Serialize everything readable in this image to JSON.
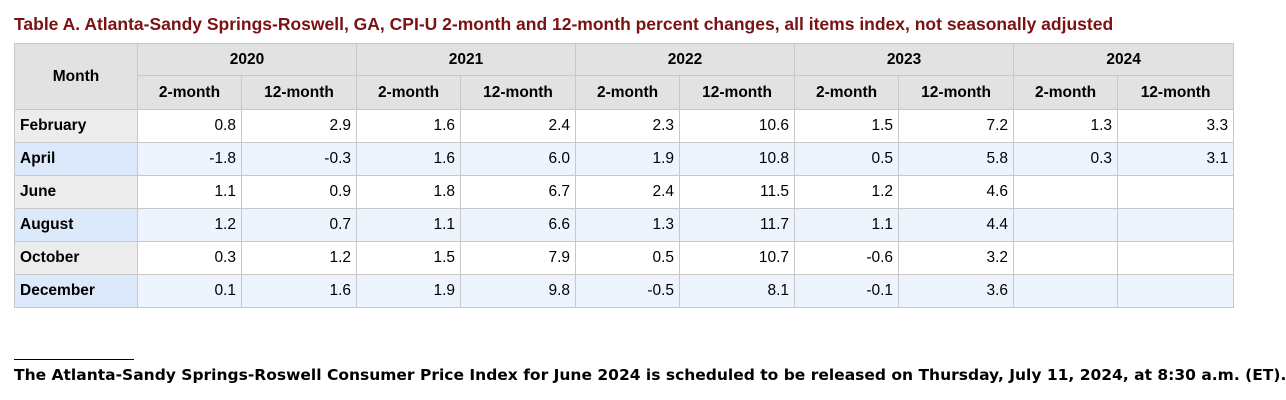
{
  "title": "Table A. Atlanta-Sandy Springs-Roswell, GA, CPI-U 2-month and 12-month percent changes, all items index, not seasonally adjusted",
  "table": {
    "month_header": "Month",
    "years": [
      "2020",
      "2021",
      "2022",
      "2023",
      "2024"
    ],
    "sub_headers": [
      "2-month",
      "12-month",
      "2-month",
      "12-month",
      "2-month",
      "12-month",
      "2-month",
      "12-month",
      "2-month",
      "12-month"
    ],
    "rows": [
      {
        "month": "February",
        "values": [
          "0.8",
          "2.9",
          "1.6",
          "2.4",
          "2.3",
          "10.6",
          "1.5",
          "7.2",
          "1.3",
          "3.3"
        ]
      },
      {
        "month": "April",
        "values": [
          "-1.8",
          "-0.3",
          "1.6",
          "6.0",
          "1.9",
          "10.8",
          "0.5",
          "5.8",
          "0.3",
          "3.1"
        ]
      },
      {
        "month": "June",
        "values": [
          "1.1",
          "0.9",
          "1.8",
          "6.7",
          "2.4",
          "11.5",
          "1.2",
          "4.6",
          "",
          ""
        ]
      },
      {
        "month": "August",
        "values": [
          "1.2",
          "0.7",
          "1.1",
          "6.6",
          "1.3",
          "11.7",
          "1.1",
          "4.4",
          "",
          ""
        ]
      },
      {
        "month": "October",
        "values": [
          "0.3",
          "1.2",
          "1.5",
          "7.9",
          "0.5",
          "10.7",
          "-0.6",
          "3.2",
          "",
          ""
        ]
      },
      {
        "month": "December",
        "values": [
          "0.1",
          "1.6",
          "1.9",
          "9.8",
          "-0.5",
          "8.1",
          "-0.1",
          "3.6",
          "",
          ""
        ]
      }
    ]
  },
  "footnote": "The Atlanta-Sandy Springs-Roswell Consumer Price Index for June 2024 is scheduled to be released on Thursday, July 11, 2024, at 8:30 a.m. (ET)."
}
